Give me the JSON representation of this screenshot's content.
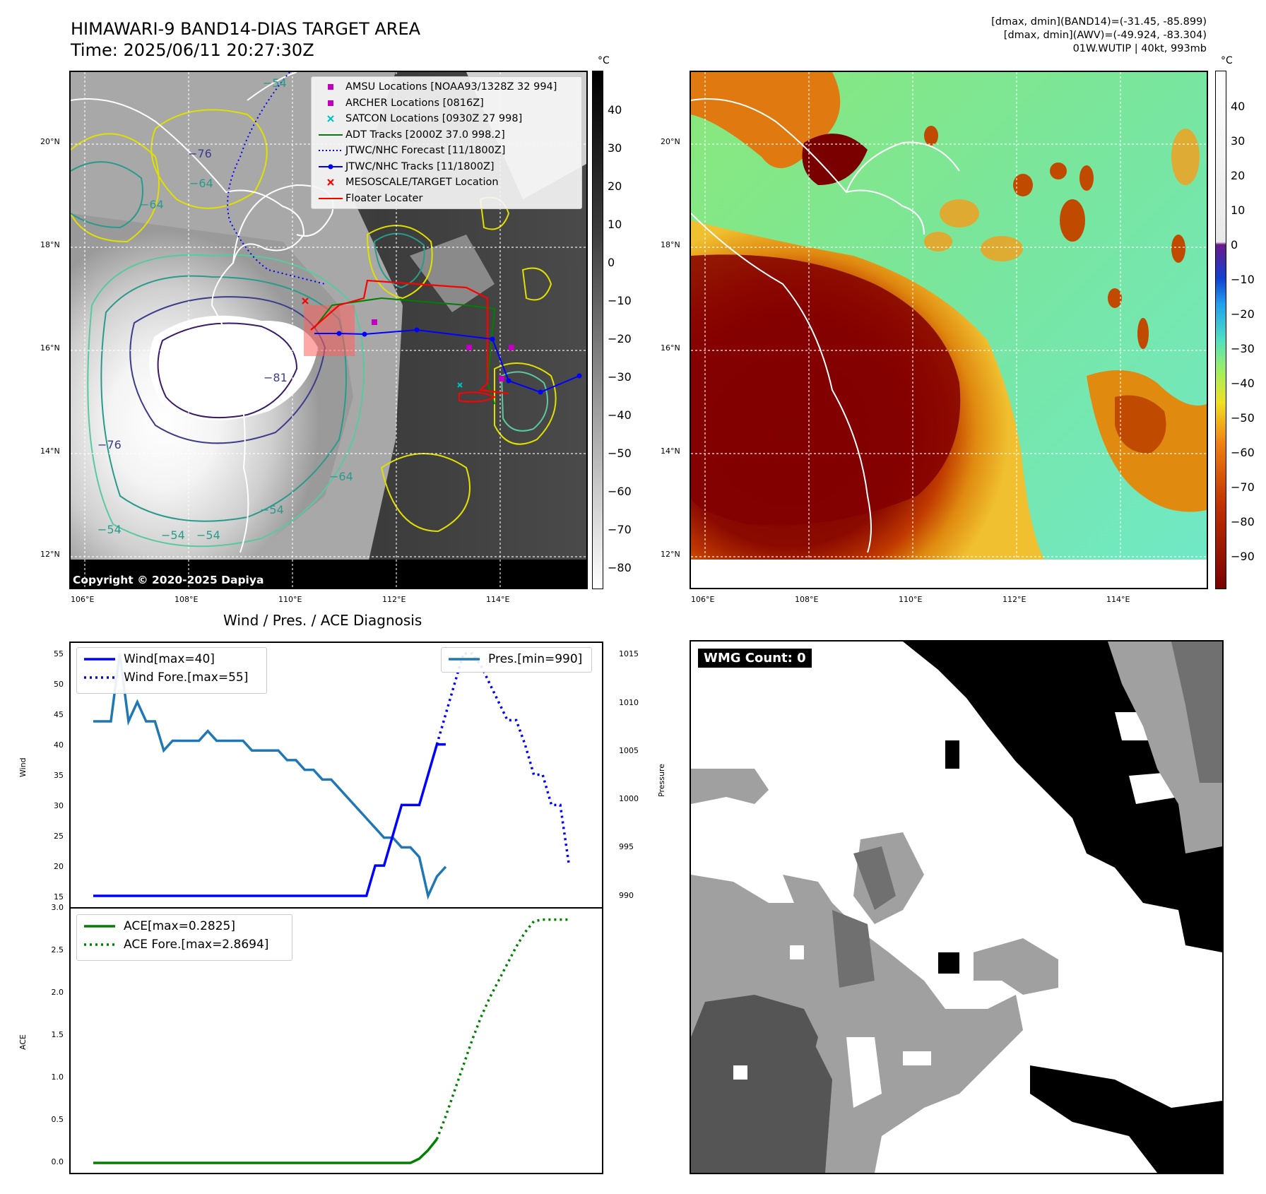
{
  "left_map": {
    "title_line1": "HIMAWARI-9 BAND14-DIAS TARGET AREA",
    "title_line2": "Time: 2025/06/11 20:27:30Z",
    "colorbar_unit": "°C",
    "colorbar_ticks": [
      "40",
      "30",
      "20",
      "10",
      "0",
      "−10",
      "−20",
      "−30",
      "−40",
      "−50",
      "−60",
      "−70",
      "−80"
    ],
    "lat_labels": [
      "20°N",
      "18°N",
      "16°N",
      "14°N",
      "12°N"
    ],
    "lon_labels": [
      "106°E",
      "108°E",
      "110°E",
      "112°E",
      "114°E"
    ],
    "copyright": "Copyright © 2020-2025 Dapiya",
    "contour_labels": [
      "−54",
      "−76",
      "−64",
      "−64",
      "−81",
      "−76",
      "−64",
      "−54",
      "−54",
      "−54",
      "−54"
    ],
    "legend": [
      {
        "label": "AMSU Locations [NOAA93/1328Z 32 994]",
        "symbol": "square",
        "color": "#bf00bf"
      },
      {
        "label": "ARCHER Locations [0816Z]",
        "symbol": "square",
        "color": "#bf00bf"
      },
      {
        "label": "SATCON Locations [0930Z 27 998]",
        "symbol": "x",
        "color": "#00bfbf"
      },
      {
        "label": "ADT Tracks [2000Z 37.0 998.2]",
        "symbol": "line",
        "color": "#008000"
      },
      {
        "label": "JTWC/NHC Forecast [11/1800Z]",
        "symbol": "dotted",
        "color": "#0000ff"
      },
      {
        "label": "JTWC/NHC Tracks [11/1800Z]",
        "symbol": "line-dot",
        "color": "#0000ff"
      },
      {
        "label": "MESOSCALE/TARGET Location",
        "symbol": "x",
        "color": "#ff0000"
      },
      {
        "label": "Floater Locater",
        "symbol": "line",
        "color": "#ff0000"
      }
    ]
  },
  "right_map": {
    "info_line1": "[dmax, dmin](BAND14)=(-31.45, -85.899)",
    "info_line2": "[dmax, dmin](AWV)=(-49.924, -83.304)",
    "info_line3": "01W.WUTIP | 40kt, 993mb",
    "colorbar_unit": "°C",
    "colorbar_ticks": [
      "40",
      "30",
      "20",
      "10",
      "0",
      "−10",
      "−20",
      "−30",
      "−40",
      "−50",
      "−60",
      "−70",
      "−80",
      "−90"
    ],
    "lat_labels": [
      "20°N",
      "18°N",
      "16°N",
      "14°N",
      "12°N"
    ],
    "lon_labels": [
      "106°E",
      "108°E",
      "110°E",
      "112°E",
      "114°E"
    ]
  },
  "diagnosis": {
    "title": "Wind / Pres. / ACE Diagnosis",
    "wind_ylabel": "Wind",
    "pres_ylabel": "Pressure",
    "ace_ylabel": "ACE",
    "wind_legend": [
      "Wind[max=40]",
      "Wind Fore.[max=55]"
    ],
    "pres_legend": [
      "Pres.[min=990]"
    ],
    "ace_legend": [
      "ACE[max=0.2825]",
      "ACE Fore.[max=2.8694]"
    ],
    "wind_ticks": [
      "55",
      "50",
      "45",
      "40",
      "35",
      "30",
      "25",
      "20",
      "15"
    ],
    "pres_ticks": [
      "1015",
      "1010",
      "1005",
      "1000",
      "995",
      "990"
    ],
    "ace_ticks": [
      "3.0",
      "2.5",
      "2.0",
      "1.5",
      "1.0",
      "0.5",
      "0.0"
    ],
    "colors": {
      "wind": "#0000ff",
      "pressure": "#1f77b4",
      "ace": "#008000"
    }
  },
  "wmg": {
    "label": "WMG Count: 0"
  },
  "chart_data": [
    {
      "type": "line",
      "title": "Wind / Pres. / ACE Diagnosis",
      "ylabel": "Wind",
      "ylim": [
        14,
        56
      ],
      "x": [
        0,
        1,
        2,
        3,
        4,
        5,
        6,
        7,
        8,
        9,
        10,
        11,
        12,
        13,
        14,
        15,
        16,
        17,
        18,
        19,
        20,
        21,
        22,
        23,
        24,
        25,
        26,
        27,
        28,
        29,
        30,
        31,
        32,
        33,
        34,
        35,
        36,
        37,
        38,
        39,
        40,
        41,
        42,
        43,
        44,
        45,
        46,
        47,
        48,
        49,
        50
      ],
      "series": [
        {
          "name": "Wind[max=40]",
          "style": "solid",
          "x": [
            0,
            4,
            8,
            12,
            16,
            20,
            24,
            28,
            31,
            32,
            33,
            34,
            35,
            36,
            37,
            38,
            39,
            40
          ],
          "values": [
            15,
            15,
            15,
            15,
            15,
            15,
            15,
            15,
            15,
            20,
            20,
            25,
            30,
            30,
            30,
            35,
            40,
            40
          ]
        },
        {
          "name": "Wind Fore.[max=55]",
          "style": "dotted",
          "x": [
            39,
            40,
            41,
            42,
            43,
            44,
            45,
            46,
            47,
            48,
            49,
            50,
            51,
            52,
            53,
            54
          ],
          "values": [
            40,
            45,
            50,
            55,
            55,
            53,
            50,
            47,
            44,
            44,
            40,
            35,
            35,
            30,
            30,
            20
          ]
        }
      ]
    },
    {
      "type": "line",
      "ylabel": "Pressure",
      "ylim": [
        989,
        1016
      ],
      "series": [
        {
          "name": "Pres.[min=990]",
          "style": "solid",
          "x": [
            0,
            1,
            2,
            3,
            4,
            5,
            6,
            7,
            8,
            9,
            10,
            11,
            12,
            13,
            14,
            15,
            16,
            17,
            18,
            19,
            20,
            21,
            22,
            23,
            24,
            25,
            26,
            27,
            28,
            29,
            30,
            31,
            32,
            33,
            34,
            35,
            36,
            37,
            38,
            39,
            40
          ],
          "values": [
            1008,
            1008,
            1008,
            1015,
            1008,
            1010,
            1008,
            1008,
            1005,
            1006,
            1006,
            1006,
            1006,
            1007,
            1006,
            1006,
            1006,
            1006,
            1005,
            1005,
            1005,
            1005,
            1004,
            1004,
            1003,
            1003,
            1002,
            1002,
            1001,
            1000,
            999,
            998,
            997,
            996,
            996,
            995,
            995,
            994,
            990,
            992,
            993
          ]
        }
      ]
    },
    {
      "type": "line",
      "ylabel": "ACE",
      "ylim": [
        0,
        3.0
      ],
      "series": [
        {
          "name": "ACE[max=0.2825]",
          "style": "solid",
          "x": [
            0,
            10,
            20,
            30,
            36,
            37,
            38,
            39
          ],
          "values": [
            0,
            0,
            0,
            0,
            0,
            0.05,
            0.15,
            0.28
          ]
        },
        {
          "name": "ACE Fore.[max=2.8694]",
          "style": "dotted",
          "x": [
            39,
            40,
            41,
            42,
            43,
            44,
            45,
            46,
            47,
            48,
            49,
            50,
            51,
            52,
            53,
            54
          ],
          "values": [
            0.28,
            0.55,
            0.85,
            1.15,
            1.45,
            1.72,
            1.95,
            2.15,
            2.35,
            2.55,
            2.72,
            2.85,
            2.87,
            2.87,
            2.87,
            2.87
          ]
        }
      ]
    }
  ]
}
